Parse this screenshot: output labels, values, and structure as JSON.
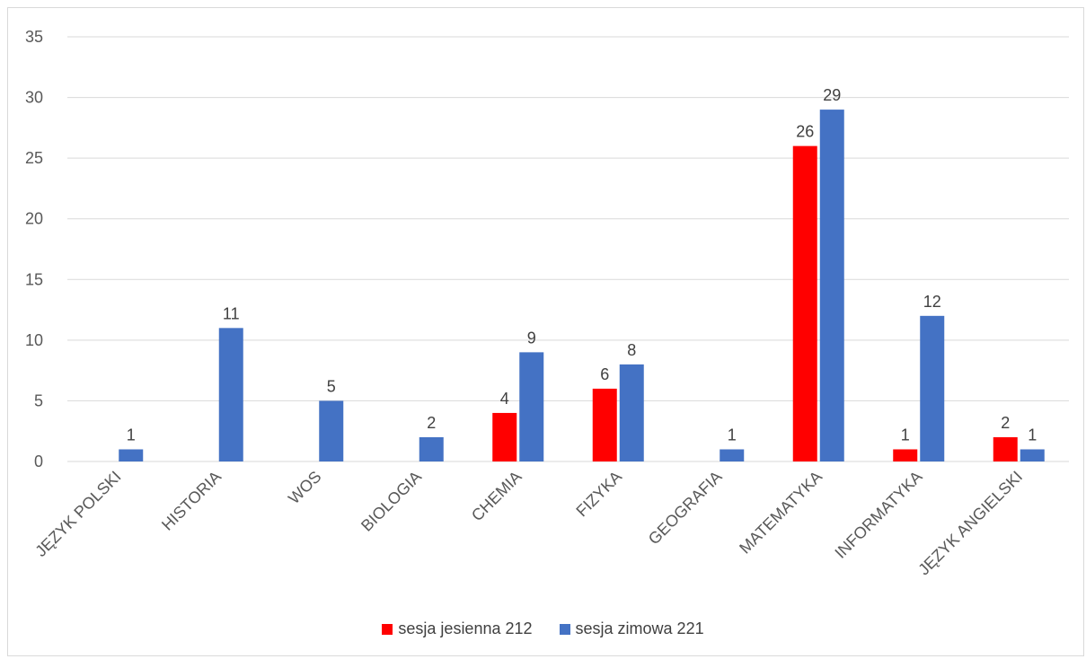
{
  "chart_data": {
    "type": "bar",
    "title": "",
    "xlabel": "",
    "ylabel": "",
    "ylim": [
      0,
      35
    ],
    "yticks": [
      0,
      5,
      10,
      15,
      20,
      25,
      30,
      35
    ],
    "grid": true,
    "legend_position": "bottom",
    "categories": [
      "JĘZYK POLSKI",
      "HISTORIA",
      "WOS",
      "BIOLOGIA",
      "CHEMIA",
      "FIZYKA",
      "GEOGRAFIA",
      "MATEMATYKA",
      "INFORMATYKA",
      "JĘZYK ANGIELSKI"
    ],
    "series": [
      {
        "name": "sesja jesienna 212",
        "color": "#ff0000",
        "values": [
          null,
          null,
          null,
          null,
          4,
          6,
          null,
          26,
          1,
          2
        ]
      },
      {
        "name": "sesja zimowa 221",
        "color": "#4472c4",
        "values": [
          1,
          11,
          5,
          2,
          9,
          8,
          1,
          29,
          12,
          1
        ]
      }
    ]
  }
}
